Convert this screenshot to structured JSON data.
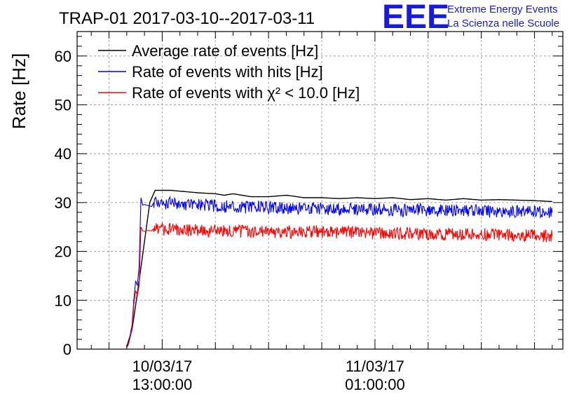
{
  "chart_data": {
    "type": "line",
    "title": "TRAP-01 2017-03-10--2017-03-11",
    "ylabel": "Rate [Hz]",
    "xlabel": "",
    "x_ticks": [
      {
        "value": 13,
        "line1": "10/03/17",
        "line2": "13:00:00"
      },
      {
        "value": 25,
        "line1": "11/03/17",
        "line2": "01:00:00"
      }
    ],
    "xlim": [
      8.2,
      35.6
    ],
    "ylim": [
      0,
      65
    ],
    "y_ticks": [
      0,
      10,
      20,
      30,
      40,
      50,
      60
    ],
    "grid": true,
    "legend_position": "top-left",
    "series": [
      {
        "name": "Average rate of events [Hz]",
        "color": "#000000",
        "x": [
          11,
          11.3,
          11.7,
          12.3,
          12.6,
          13.5,
          15,
          16,
          16.5,
          17,
          18,
          19,
          20,
          21,
          22,
          23,
          24,
          25,
          26,
          27,
          28,
          29,
          30,
          31,
          32,
          33,
          34,
          35
        ],
        "y": [
          0.5,
          4,
          14,
          30,
          32.5,
          32.5,
          32,
          31.8,
          31.5,
          31.8,
          31.2,
          31.2,
          31.5,
          31,
          31,
          30.8,
          31,
          30.8,
          31,
          30.6,
          30.8,
          30.5,
          30.8,
          30.5,
          30.6,
          30.5,
          30.4,
          30.2
        ]
      },
      {
        "name": "Rate of events with hits [Hz]",
        "color": "#0000ff",
        "x": [
          11,
          11.1,
          11.3,
          11.4,
          11.5,
          11.6,
          11.7,
          11.8,
          11.9,
          12.0,
          12.2,
          12.4,
          12.6,
          12.8,
          13.5,
          14.5,
          15.5,
          16.5,
          17.5,
          18.5,
          19.5,
          20.5,
          21.5,
          22.5,
          23.5,
          24.5,
          25.5,
          26.5,
          27.5,
          28.5,
          29.5,
          30.5,
          31.5,
          32.5,
          33.5,
          34.5,
          35
        ],
        "y": [
          0.5,
          1,
          5,
          10,
          14,
          13,
          17,
          31,
          29.5,
          29.6,
          29.4,
          29.2,
          30.5,
          29.5,
          30,
          29.5,
          29.4,
          29.2,
          29,
          29.1,
          28.9,
          28.8,
          28.9,
          28.6,
          28.8,
          28.5,
          28.6,
          28.4,
          28.5,
          28.4,
          28.3,
          28.4,
          28.2,
          28.3,
          28.1,
          28.0,
          28.0
        ]
      },
      {
        "name": "Rate of events with χ² < 10.0 [Hz]",
        "color": "#ff0000",
        "x": [
          11,
          11.1,
          11.3,
          11.4,
          11.5,
          11.6,
          11.7,
          11.8,
          11.9,
          12.0,
          12.2,
          12.4,
          12.6,
          12.8,
          13.5,
          14.5,
          15.5,
          16.5,
          17.5,
          18.5,
          19.5,
          20.5,
          21.5,
          22.5,
          23.5,
          24.5,
          25.5,
          26.5,
          27.5,
          28.5,
          29.5,
          30.5,
          31.5,
          32.5,
          33.5,
          34.5,
          35
        ],
        "y": [
          0.3,
          1,
          4,
          9,
          12,
          11,
          13,
          25,
          24.2,
          24.1,
          24.3,
          24.2,
          25,
          24.4,
          24.6,
          24.3,
          24.2,
          24.3,
          24.1,
          24.2,
          24,
          23.9,
          24.1,
          23.8,
          24,
          23.7,
          23.8,
          23.6,
          23.7,
          23.5,
          23.6,
          23.5,
          23.4,
          23.4,
          23.3,
          23.2,
          23.1
        ]
      }
    ]
  },
  "logo": {
    "text": "EEE",
    "line1": "Extreme Energy Events",
    "line2": "La Scienza nelle Scuole",
    "color": "#1a1adf"
  }
}
